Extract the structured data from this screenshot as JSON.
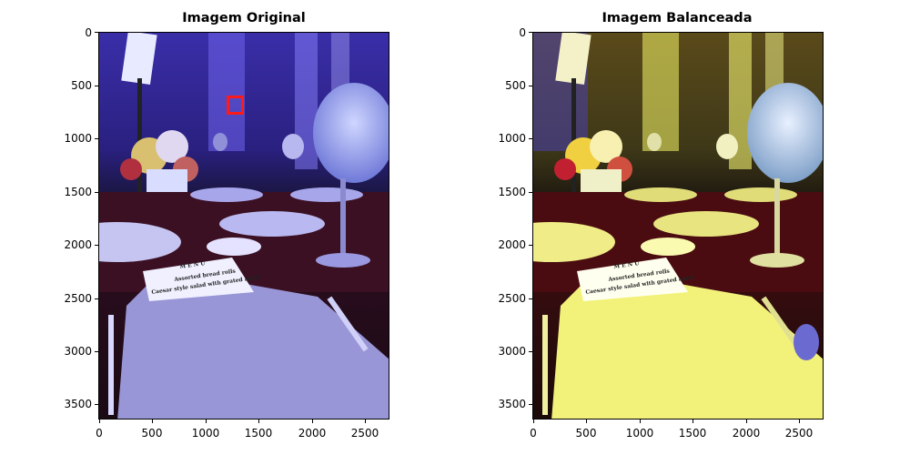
{
  "panels": [
    {
      "title": "Imagem Original",
      "yticks": [
        "0",
        "500",
        "1000",
        "1500",
        "2000",
        "2500",
        "3000",
        "3500"
      ],
      "xticks": [
        "0",
        "500",
        "1000",
        "1500",
        "2000",
        "2500"
      ]
    },
    {
      "title": "Imagem Balanceada",
      "yticks": [
        "0",
        "500",
        "1000",
        "1500",
        "2000",
        "2500",
        "3000",
        "3500"
      ],
      "xticks": [
        "0",
        "500",
        "1000",
        "1500",
        "2000",
        "2500"
      ]
    }
  ],
  "menu_card": {
    "heading": "M E N U",
    "line1": "Assorted bread rolls",
    "line2": "Caesar style salad with grated aged"
  },
  "image_extent": {
    "width": 2730,
    "height": 3640
  },
  "roi_box_original": {
    "x": [
      1180,
      1340
    ],
    "y": [
      580,
      760
    ]
  },
  "colors": {
    "roi": "#ff1a1a",
    "original_tint": "#5a55d8",
    "balanced_tint": "#f2f27a"
  }
}
